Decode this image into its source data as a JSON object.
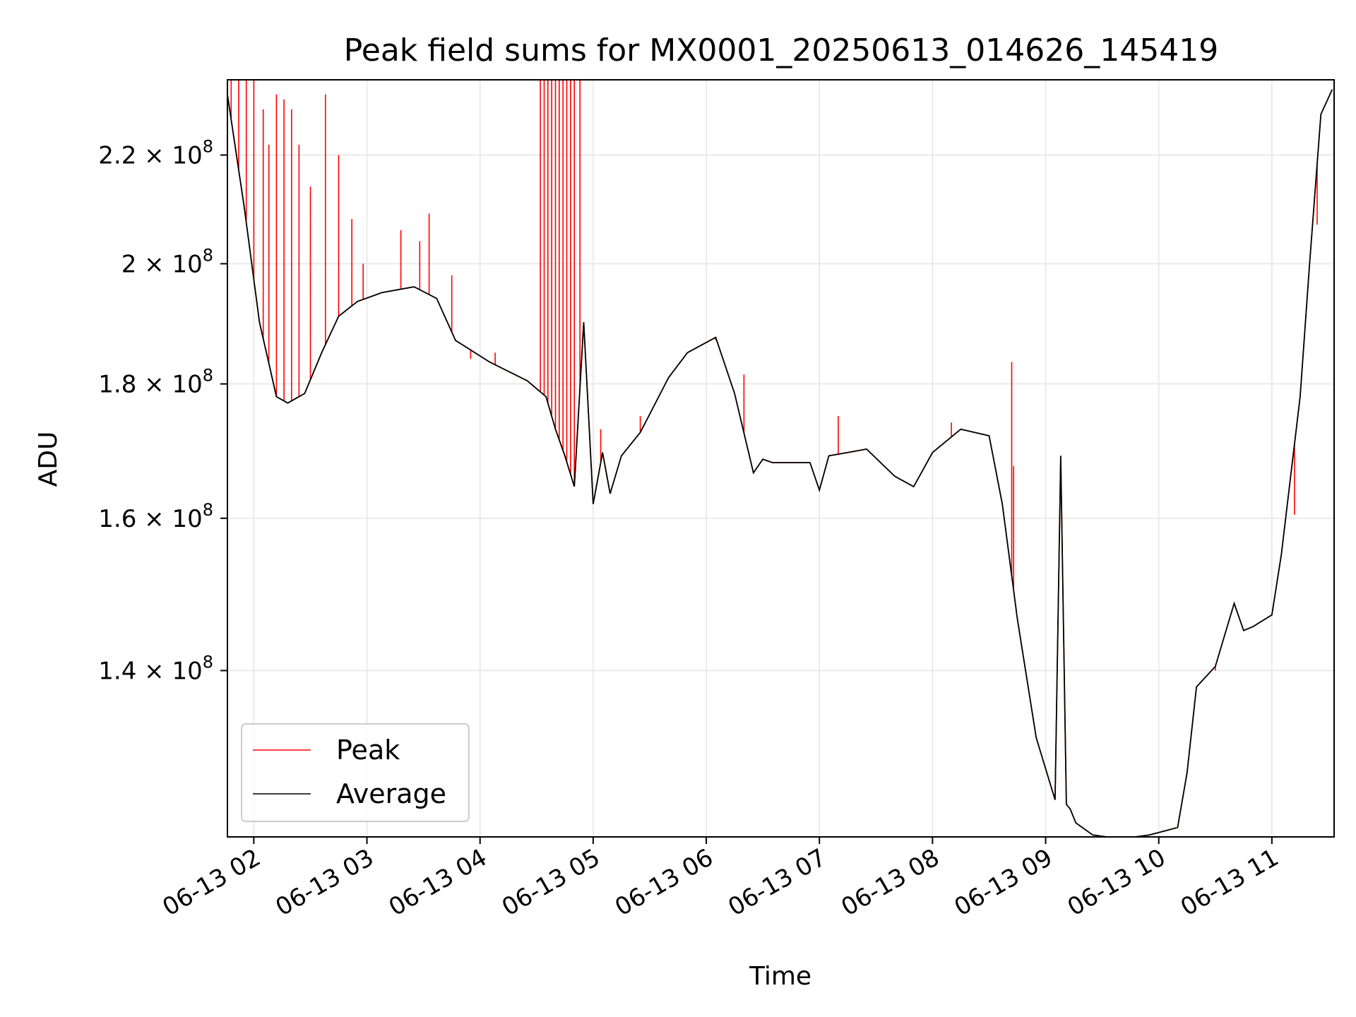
{
  "chart_data": {
    "type": "line",
    "title": "Peak field sums for MX0001_20250613_014626_145419",
    "xlabel": "Time",
    "ylabel": "ADU",
    "y_scale": "log",
    "grid": true,
    "legend_position": "lower-left",
    "xlim": [
      "06-13 01:46",
      "06-13 11:33"
    ],
    "ylim": [
      121000000,
      235000000
    ],
    "x_ticks": [
      "06-13 02",
      "06-13 03",
      "06-13 04",
      "06-13 05",
      "06-13 06",
      "06-13 07",
      "06-13 08",
      "06-13 09",
      "06-13 10",
      "06-13 11"
    ],
    "y_ticks": [
      {
        "value": 140000000,
        "mantissa": "1.4",
        "times": "×",
        "base": "10",
        "exp": "8"
      },
      {
        "value": 160000000,
        "mantissa": "1.6",
        "times": "×",
        "base": "10",
        "exp": "8"
      },
      {
        "value": 180000000,
        "mantissa": "1.8",
        "times": "×",
        "base": "10",
        "exp": "8"
      },
      {
        "value": 200000000,
        "mantissa": "2",
        "times": "×",
        "base": "10",
        "exp": "8"
      },
      {
        "value": 220000000,
        "mantissa": "2.2",
        "times": "×",
        "base": "10",
        "exp": "8"
      }
    ],
    "series": [
      {
        "name": "Average",
        "color": "#000000",
        "x": [
          "06-13 01:46",
          "06-13 01:55",
          "06-13 02:03",
          "06-13 02:12",
          "06-13 02:18",
          "06-13 02:27",
          "06-13 02:36",
          "06-13 02:45",
          "06-13 02:55",
          "06-13 03:08",
          "06-13 03:25",
          "06-13 03:37",
          "06-13 03:47",
          "06-13 04:05",
          "06-13 04:25",
          "06-13 04:35",
          "06-13 04:40",
          "06-13 04:45",
          "06-13 04:50",
          "06-13 04:55",
          "06-13 05:00",
          "06-13 05:05",
          "06-13 05:09",
          "06-13 05:15",
          "06-13 05:25",
          "06-13 05:40",
          "06-13 05:50",
          "06-13 06:05",
          "06-13 06:15",
          "06-13 06:25",
          "06-13 06:30",
          "06-13 06:35",
          "06-13 06:45",
          "06-13 06:55",
          "06-13 07:00",
          "06-13 07:05",
          "06-13 07:15",
          "06-13 07:25",
          "06-13 07:40",
          "06-13 07:50",
          "06-13 08:00",
          "06-13 08:15",
          "06-13 08:30",
          "06-13 08:37",
          "06-13 08:45",
          "06-13 08:55",
          "06-13 09:05",
          "06-13 09:08",
          "06-13 09:11",
          "06-13 09:13",
          "06-13 09:16",
          "06-13 09:25",
          "06-13 09:40",
          "06-13 09:55",
          "06-13 10:10",
          "06-13 10:15",
          "06-13 10:20",
          "06-13 10:30",
          "06-13 10:40",
          "06-13 10:45",
          "06-13 10:50",
          "06-13 11:00",
          "06-13 11:05",
          "06-13 11:15",
          "06-13 11:20",
          "06-13 11:26",
          "06-13 11:32"
        ],
        "y": [
          232000000,
          210000000,
          190000000,
          178000000,
          177000000,
          178500000,
          185000000,
          191000000,
          193500000,
          195000000,
          196000000,
          194000000,
          187000000,
          183500000,
          180500000,
          178000000,
          173000000,
          169000000,
          164500000,
          190000000,
          162000000,
          169500000,
          163500000,
          169000000,
          172500000,
          181000000,
          185000000,
          187500000,
          178500000,
          166500000,
          168500000,
          168000000,
          168000000,
          168000000,
          164000000,
          169000000,
          169500000,
          170000000,
          166000000,
          164500000,
          169500000,
          173000000,
          172000000,
          162000000,
          146500000,
          132000000,
          125000000,
          169000000,
          124500000,
          124000000,
          122500000,
          121200000,
          120800000,
          121200000,
          122000000,
          128000000,
          138000000,
          140500000,
          148500000,
          145000000,
          145500000,
          147000000,
          155000000,
          178000000,
          200000000,
          228000000,
          233000000
        ]
      },
      {
        "name": "Peak",
        "color": "#ff0000",
        "x": [
          "06-13 01:48",
          "06-13 01:52",
          "06-13 01:56",
          "06-13 02:00",
          "06-13 02:05",
          "06-13 02:08",
          "06-13 02:12",
          "06-13 02:16",
          "06-13 02:20",
          "06-13 02:24",
          "06-13 02:30",
          "06-13 02:38",
          "06-13 02:45",
          "06-13 02:52",
          "06-13 02:58",
          "06-13 03:18",
          "06-13 03:28",
          "06-13 03:33",
          "06-13 03:45",
          "06-13 03:55",
          "06-13 04:08",
          "06-13 04:32",
          "06-13 04:34",
          "06-13 04:36",
          "06-13 04:38",
          "06-13 04:40",
          "06-13 04:42",
          "06-13 04:44",
          "06-13 04:46",
          "06-13 04:48",
          "06-13 04:50",
          "06-13 04:53",
          "06-13 05:04",
          "06-13 05:25",
          "06-13 06:05",
          "06-13 06:20",
          "06-13 07:10",
          "06-13 08:10",
          "06-13 08:42",
          "06-13 08:43",
          "06-13 10:30",
          "06-13 11:12",
          "06-13 11:24"
        ],
        "y": [
          235000000,
          235000000,
          235000000,
          235000000,
          229000000,
          222000000,
          232000000,
          231000000,
          229000000,
          222000000,
          214000000,
          232000000,
          220000000,
          208000000,
          200000000,
          206000000,
          204000000,
          209000000,
          198000000,
          184000000,
          185000000,
          235000000,
          235000000,
          235000000,
          235000000,
          235000000,
          235000000,
          235000000,
          235000000,
          235000000,
          235000000,
          235000000,
          173000000,
          175000000,
          187000000,
          181500000,
          175000000,
          174000000,
          183500000,
          167500000,
          140000000,
          160500000,
          207000000
        ]
      }
    ]
  }
}
